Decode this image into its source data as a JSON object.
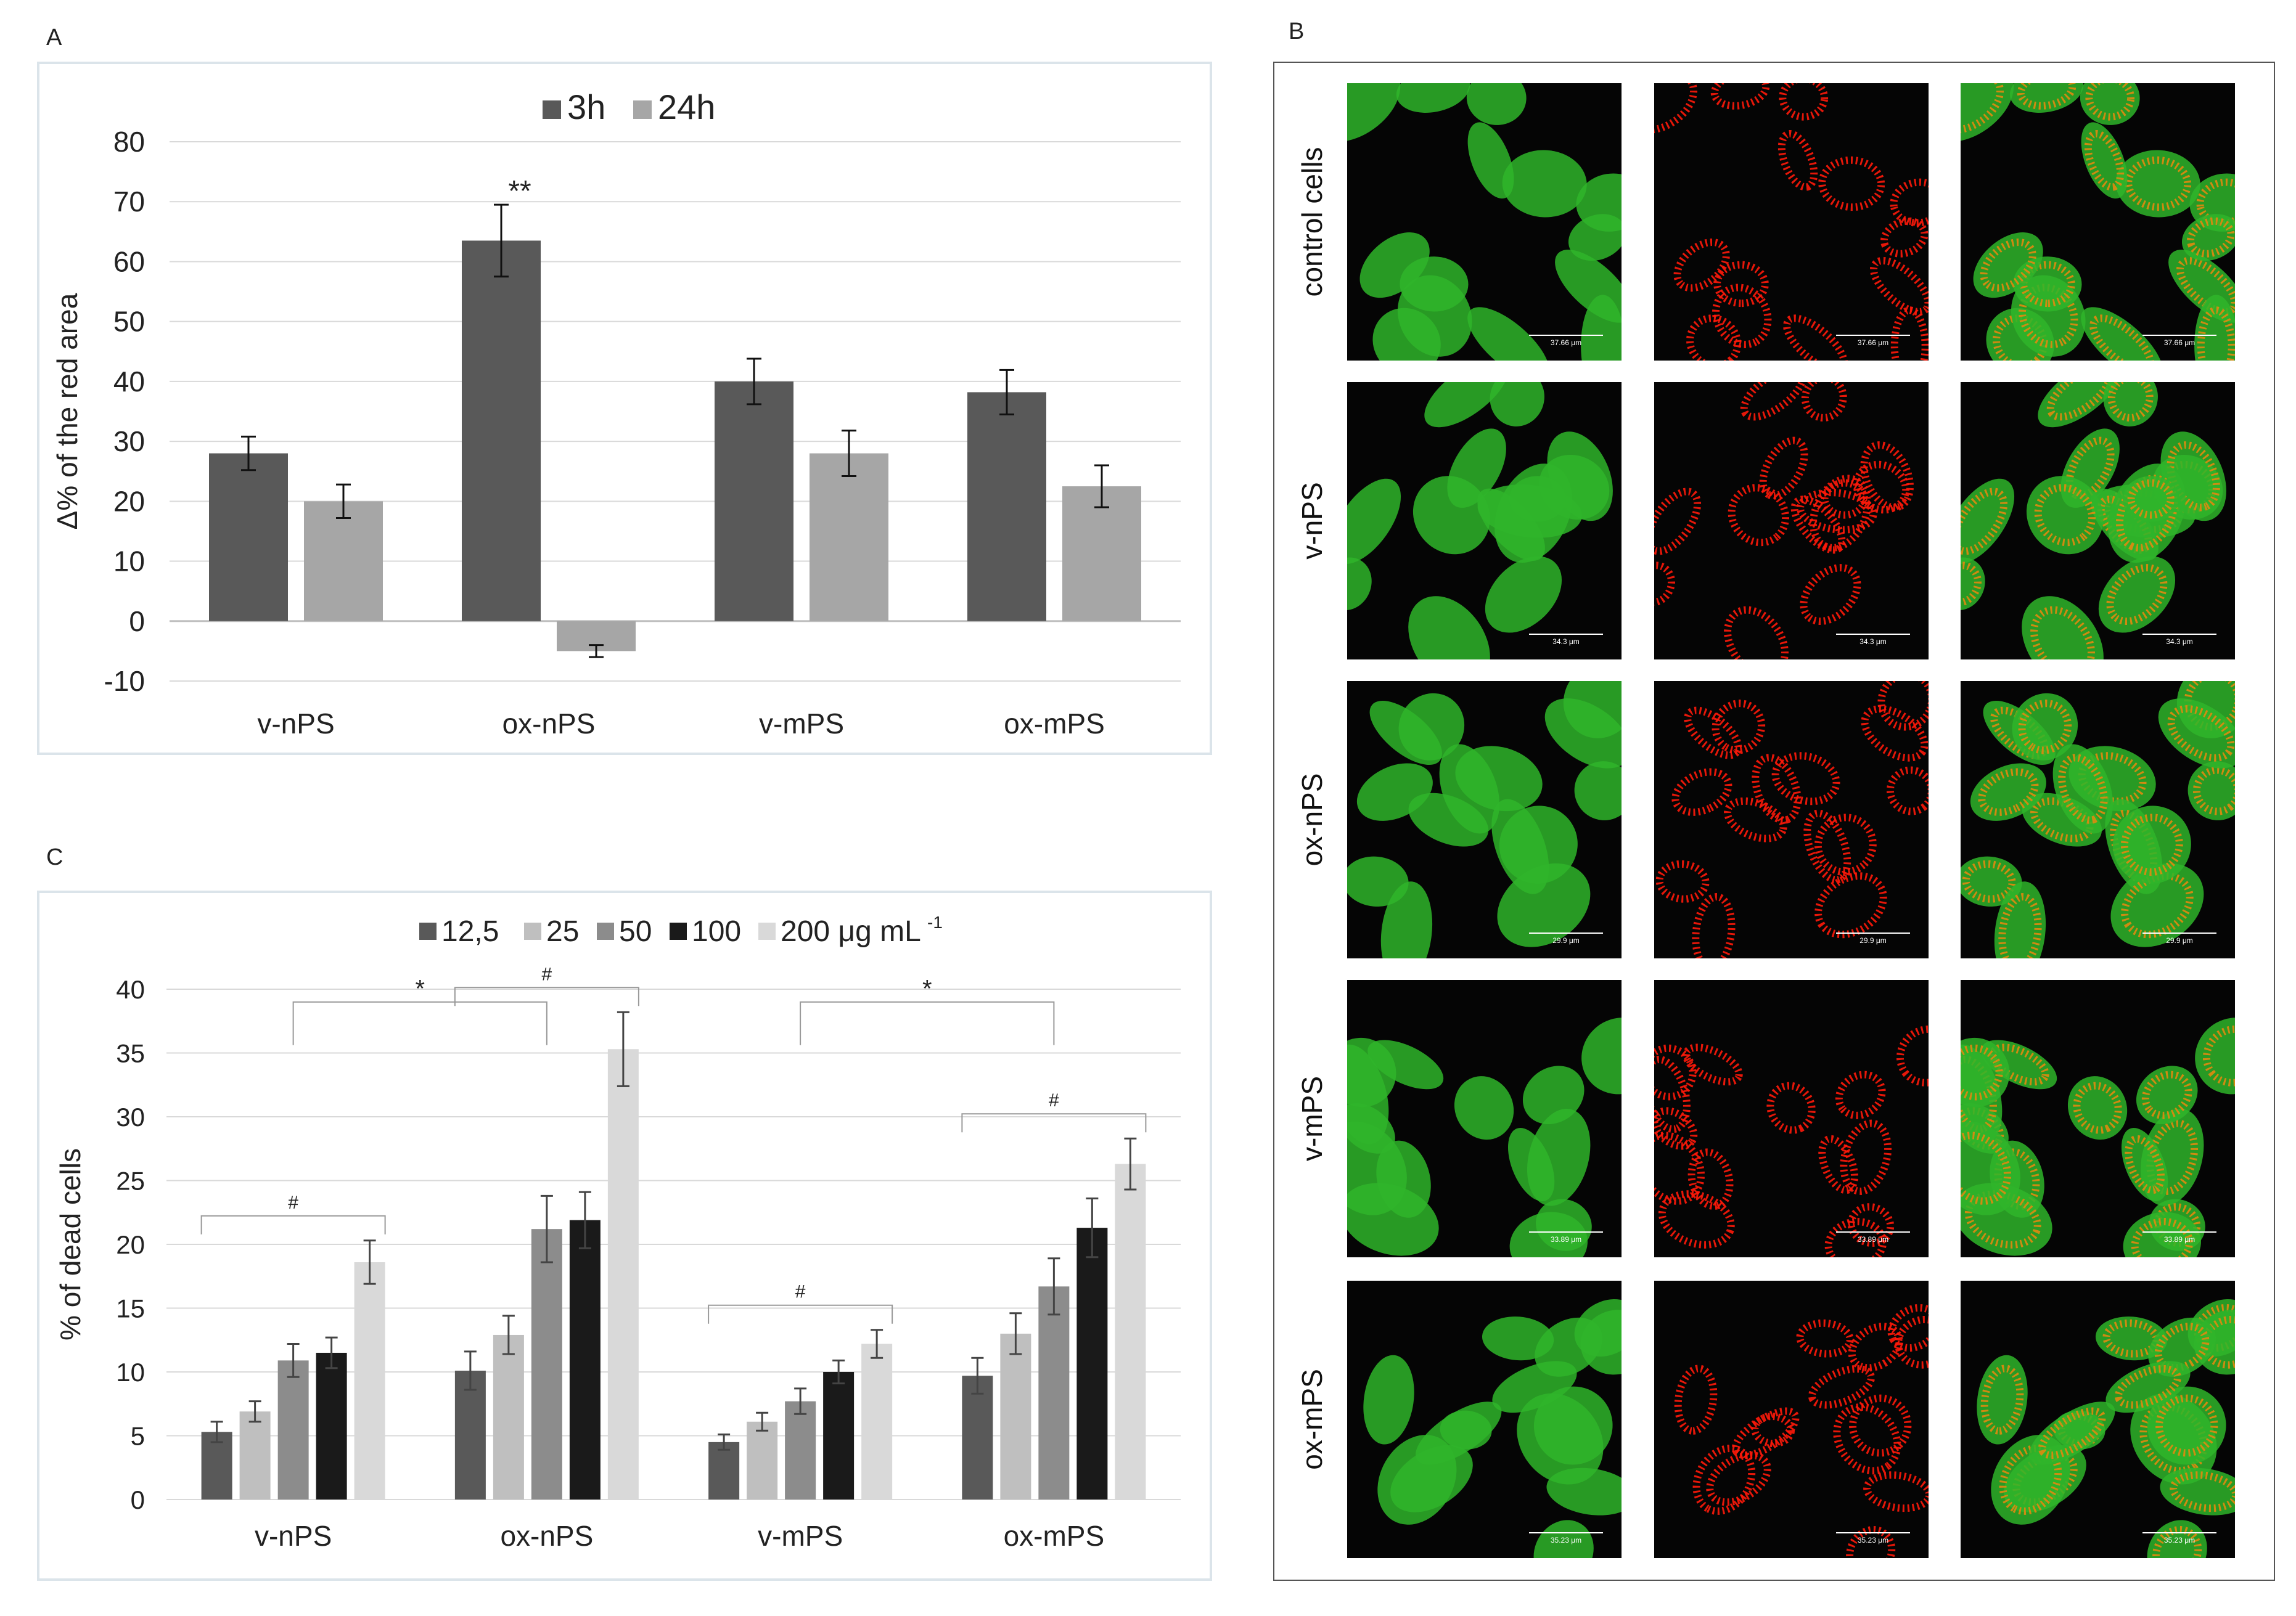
{
  "panel_labels": {
    "a": "A",
    "b": "B",
    "c": "C"
  },
  "chart_data": [
    {
      "panel": "A",
      "type": "bar",
      "categories": [
        "v-nPS",
        "ox-nPS",
        "v-mPS",
        "ox-mPS"
      ],
      "series": [
        {
          "name": "3h",
          "values": [
            28,
            63.5,
            40,
            38.2
          ],
          "errors": [
            2.8,
            6,
            3.8,
            3.7
          ],
          "color": "#595959"
        },
        {
          "name": "24h",
          "values": [
            20,
            -5,
            28,
            22.5
          ],
          "errors": [
            2.8,
            1,
            3.8,
            3.5
          ],
          "color": "#a6a6a6"
        }
      ],
      "annotations": [
        {
          "text": "**",
          "category": "ox-nPS",
          "series": "3h"
        }
      ],
      "ylabel": "Δ% of the red area",
      "ylim": [
        -10,
        80
      ],
      "yticks": [
        -10,
        0,
        10,
        20,
        30,
        40,
        50,
        60,
        70,
        80
      ],
      "grid": true,
      "legend_position": "top-center"
    },
    {
      "panel": "C",
      "type": "bar",
      "categories": [
        "v-nPS",
        "ox-nPS",
        "v-mPS",
        "ox-mPS"
      ],
      "series": [
        {
          "name": "12,5",
          "values": [
            5.3,
            10.1,
            4.5,
            9.7
          ],
          "errors": [
            0.8,
            1.5,
            0.6,
            1.4
          ],
          "color": "#595959"
        },
        {
          "name": "25",
          "values": [
            6.9,
            12.9,
            6.1,
            13
          ],
          "errors": [
            0.8,
            1.5,
            0.7,
            1.6
          ],
          "color": "#bfbfbf"
        },
        {
          "name": "50",
          "values": [
            10.9,
            21.2,
            7.7,
            16.7
          ],
          "errors": [
            1.3,
            2.6,
            1,
            2.2
          ],
          "color": "#8c8c8c"
        },
        {
          "name": "100",
          "values": [
            11.5,
            21.9,
            10,
            21.3
          ],
          "errors": [
            1.2,
            2.2,
            0.9,
            2.3
          ],
          "color": "#1a1a1a"
        },
        {
          "name": "200 μg mL",
          "values": [
            18.6,
            35.3,
            12.2,
            26.3
          ],
          "errors": [
            1.7,
            2.9,
            1.1,
            2
          ],
          "color": "#d9d9d9"
        }
      ],
      "legend_unit_superscript": "-1",
      "brackets": [
        {
          "from": "v-nPS",
          "to": "ox-nPS",
          "label": "*"
        },
        {
          "from": "v-mPS",
          "to": "ox-mPS",
          "label": "*"
        },
        {
          "within": "v-nPS",
          "label": "#"
        },
        {
          "within": "ox-nPS",
          "label": "#"
        },
        {
          "within": "v-mPS",
          "label": "#"
        },
        {
          "within": "ox-mPS",
          "label": "#"
        }
      ],
      "ylabel": "% of dead cells",
      "ylim": [
        0,
        40
      ],
      "yticks": [
        0,
        5,
        10,
        15,
        20,
        25,
        30,
        35,
        40
      ],
      "grid": true,
      "legend_position": "top-center"
    }
  ],
  "microscopy": {
    "rows": [
      {
        "label": "control cells",
        "scale": "37.66 μm"
      },
      {
        "label": "v-nPS",
        "scale": "34.3 μm"
      },
      {
        "label": "ox-nPS",
        "scale": "29.9 μm"
      },
      {
        "label": "v-mPS",
        "scale": "33.89 μm"
      },
      {
        "label": "ox-mPS",
        "scale": "35.23 μm"
      }
    ],
    "columns": [
      "green",
      "red",
      "merge"
    ],
    "colors": {
      "green": "#2fb52a",
      "red": "#ff1a0a",
      "merge": "#e08a10",
      "background": "#050505"
    }
  }
}
